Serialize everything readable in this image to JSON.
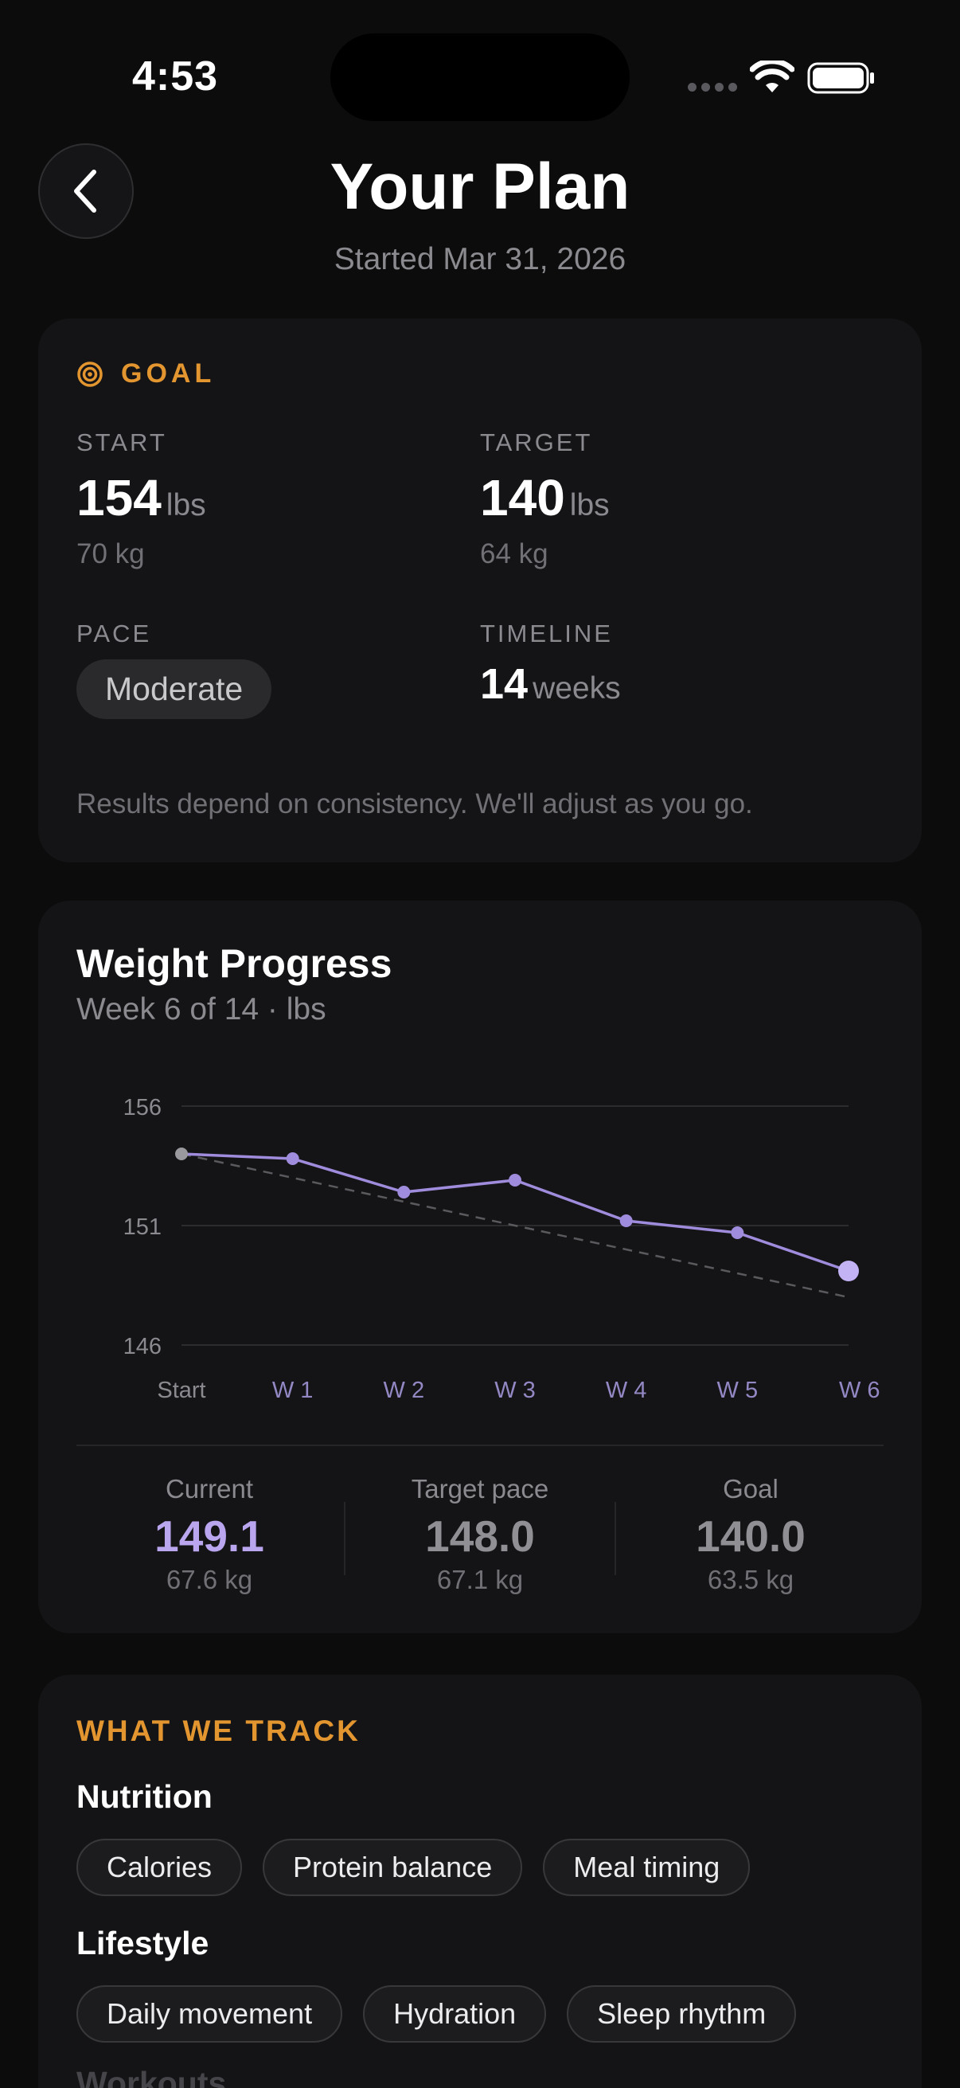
{
  "status_bar": {
    "time": "4:53"
  },
  "header": {
    "title": "Your Plan",
    "subtitle": "Started Mar 31, 2026"
  },
  "goal": {
    "title": "GOAL",
    "start": {
      "label": "START",
      "value": "154",
      "unit": "lbs",
      "metric": "70 kg"
    },
    "target": {
      "label": "TARGET",
      "value": "140",
      "unit": "lbs",
      "metric": "64 kg"
    },
    "pace": {
      "label": "PACE",
      "value": "Moderate"
    },
    "timeline": {
      "label": "TIMELINE",
      "value": "14",
      "unit": "weeks"
    },
    "note": "Results depend on consistency. We'll adjust as you go."
  },
  "progress": {
    "title": "Weight Progress",
    "subtitle": "Week 6 of 14 · lbs",
    "stats": [
      {
        "label": "Current",
        "value": "149.1",
        "sub": "67.6 kg"
      },
      {
        "label": "Target pace",
        "value": "148.0",
        "sub": "67.1 kg"
      },
      {
        "label": "Goal",
        "value": "140.0",
        "sub": "63.5 kg"
      }
    ]
  },
  "chart_data": {
    "type": "line",
    "categories": [
      "Start",
      "W 1",
      "W 2",
      "W 3",
      "W 4",
      "W 5",
      "W 6"
    ],
    "series": [
      {
        "values": [
          154.0,
          153.8,
          152.4,
          152.9,
          151.2,
          150.7,
          149.1
        ],
        "color": "#a08cdc"
      },
      {
        "values": [
          154.0,
          153.0,
          152.0,
          151.0,
          150.0,
          149.0,
          148.0
        ],
        "color": "#5a5a5e",
        "dashed": true
      }
    ],
    "yticks": [
      156,
      151,
      146
    ],
    "ylim": [
      146,
      156
    ],
    "grid": true
  },
  "track": {
    "title": "WHAT WE TRACK",
    "sections": [
      {
        "title": "Nutrition",
        "chips": [
          "Calories",
          "Protein balance",
          "Meal timing"
        ]
      },
      {
        "title": "Lifestyle",
        "chips": [
          "Daily movement",
          "Hydration",
          "Sleep rhythm"
        ]
      },
      {
        "title": "Workouts",
        "chips": []
      }
    ]
  },
  "colors": {
    "accent_orange": "#e3962f",
    "accent_purple": "#b9a6ef",
    "background": "#0c0c0d",
    "card": "#141416"
  }
}
